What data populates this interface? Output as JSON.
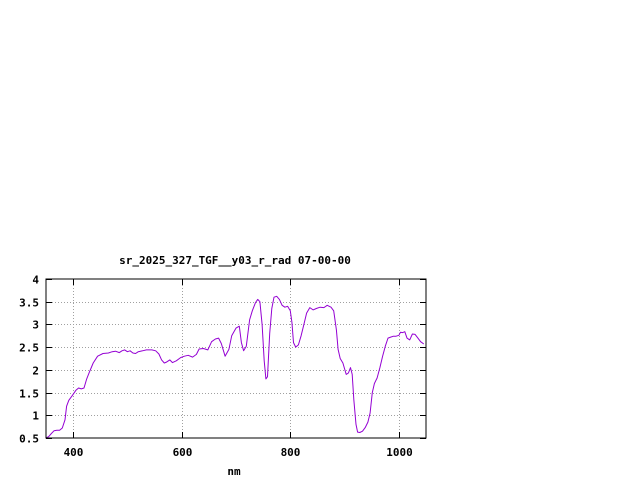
{
  "chart_data": {
    "type": "line",
    "title": "sr_2025_327_TGF__y03_r_rad 07-00-00",
    "xlabel": "nm",
    "ylabel": "",
    "xlim": [
      350,
      1050
    ],
    "ylim": [
      0.5,
      4
    ],
    "x_ticks": [
      400,
      600,
      800,
      1000
    ],
    "x_tick_labels": [
      "400",
      "600",
      "800",
      "1000"
    ],
    "y_ticks": [
      0.5,
      1,
      1.5,
      2,
      2.5,
      3,
      3.5,
      4
    ],
    "y_tick_labels": [
      "0.5",
      "1",
      "1.5",
      "2",
      "2.5",
      "3",
      "3.5",
      "4"
    ],
    "grid": true,
    "line_color": "#9400d3",
    "series": [
      {
        "points": [
          [
            350,
            0.5
          ],
          [
            355,
            0.53
          ],
          [
            360,
            0.6
          ],
          [
            365,
            0.66
          ],
          [
            370,
            0.67
          ],
          [
            375,
            0.67
          ],
          [
            380,
            0.72
          ],
          [
            385,
            0.9
          ],
          [
            388,
            1.2
          ],
          [
            392,
            1.33
          ],
          [
            398,
            1.43
          ],
          [
            405,
            1.55
          ],
          [
            410,
            1.6
          ],
          [
            415,
            1.58
          ],
          [
            420,
            1.6
          ],
          [
            425,
            1.8
          ],
          [
            430,
            1.95
          ],
          [
            437,
            2.15
          ],
          [
            445,
            2.3
          ],
          [
            455,
            2.36
          ],
          [
            465,
            2.37
          ],
          [
            472,
            2.4
          ],
          [
            478,
            2.41
          ],
          [
            485,
            2.38
          ],
          [
            490,
            2.42
          ],
          [
            495,
            2.44
          ],
          [
            500,
            2.4
          ],
          [
            505,
            2.42
          ],
          [
            510,
            2.37
          ],
          [
            515,
            2.36
          ],
          [
            520,
            2.4
          ],
          [
            528,
            2.42
          ],
          [
            535,
            2.44
          ],
          [
            545,
            2.44
          ],
          [
            552,
            2.42
          ],
          [
            558,
            2.35
          ],
          [
            563,
            2.22
          ],
          [
            568,
            2.15
          ],
          [
            572,
            2.17
          ],
          [
            578,
            2.22
          ],
          [
            583,
            2.16
          ],
          [
            590,
            2.2
          ],
          [
            598,
            2.27
          ],
          [
            605,
            2.3
          ],
          [
            612,
            2.32
          ],
          [
            620,
            2.28
          ],
          [
            627,
            2.34
          ],
          [
            632,
            2.46
          ],
          [
            640,
            2.47
          ],
          [
            648,
            2.44
          ],
          [
            655,
            2.62
          ],
          [
            662,
            2.68
          ],
          [
            668,
            2.7
          ],
          [
            673,
            2.58
          ],
          [
            680,
            2.3
          ],
          [
            687,
            2.45
          ],
          [
            692,
            2.75
          ],
          [
            700,
            2.92
          ],
          [
            706,
            2.96
          ],
          [
            710,
            2.6
          ],
          [
            714,
            2.42
          ],
          [
            719,
            2.52
          ],
          [
            725,
            3.1
          ],
          [
            730,
            3.3
          ],
          [
            736,
            3.48
          ],
          [
            740,
            3.55
          ],
          [
            744,
            3.5
          ],
          [
            748,
            3.0
          ],
          [
            752,
            2.2
          ],
          [
            755,
            1.8
          ],
          [
            758,
            1.85
          ],
          [
            762,
            2.8
          ],
          [
            766,
            3.35
          ],
          [
            770,
            3.6
          ],
          [
            775,
            3.62
          ],
          [
            780,
            3.55
          ],
          [
            785,
            3.42
          ],
          [
            790,
            3.38
          ],
          [
            795,
            3.4
          ],
          [
            800,
            3.3
          ],
          [
            803,
            3.05
          ],
          [
            806,
            2.6
          ],
          [
            810,
            2.5
          ],
          [
            815,
            2.55
          ],
          [
            820,
            2.75
          ],
          [
            825,
            3.0
          ],
          [
            830,
            3.25
          ],
          [
            836,
            3.37
          ],
          [
            842,
            3.32
          ],
          [
            848,
            3.35
          ],
          [
            855,
            3.38
          ],
          [
            862,
            3.37
          ],
          [
            868,
            3.42
          ],
          [
            875,
            3.38
          ],
          [
            880,
            3.3
          ],
          [
            885,
            2.88
          ],
          [
            888,
            2.45
          ],
          [
            892,
            2.25
          ],
          [
            897,
            2.15
          ],
          [
            900,
            2.02
          ],
          [
            903,
            1.9
          ],
          [
            907,
            1.93
          ],
          [
            911,
            2.05
          ],
          [
            914,
            1.9
          ],
          [
            917,
            1.35
          ],
          [
            921,
            0.8
          ],
          [
            924,
            0.63
          ],
          [
            928,
            0.62
          ],
          [
            933,
            0.65
          ],
          [
            938,
            0.73
          ],
          [
            943,
            0.85
          ],
          [
            947,
            1.05
          ],
          [
            951,
            1.5
          ],
          [
            955,
            1.7
          ],
          [
            960,
            1.82
          ],
          [
            965,
            2.05
          ],
          [
            970,
            2.3
          ],
          [
            975,
            2.52
          ],
          [
            980,
            2.7
          ],
          [
            985,
            2.72
          ],
          [
            990,
            2.74
          ],
          [
            995,
            2.74
          ],
          [
            1000,
            2.76
          ],
          [
            1003,
            2.83
          ],
          [
            1007,
            2.82
          ],
          [
            1011,
            2.84
          ],
          [
            1015,
            2.7
          ],
          [
            1020,
            2.66
          ],
          [
            1025,
            2.79
          ],
          [
            1030,
            2.78
          ],
          [
            1035,
            2.7
          ],
          [
            1040,
            2.62
          ],
          [
            1046,
            2.57
          ]
        ]
      }
    ]
  }
}
